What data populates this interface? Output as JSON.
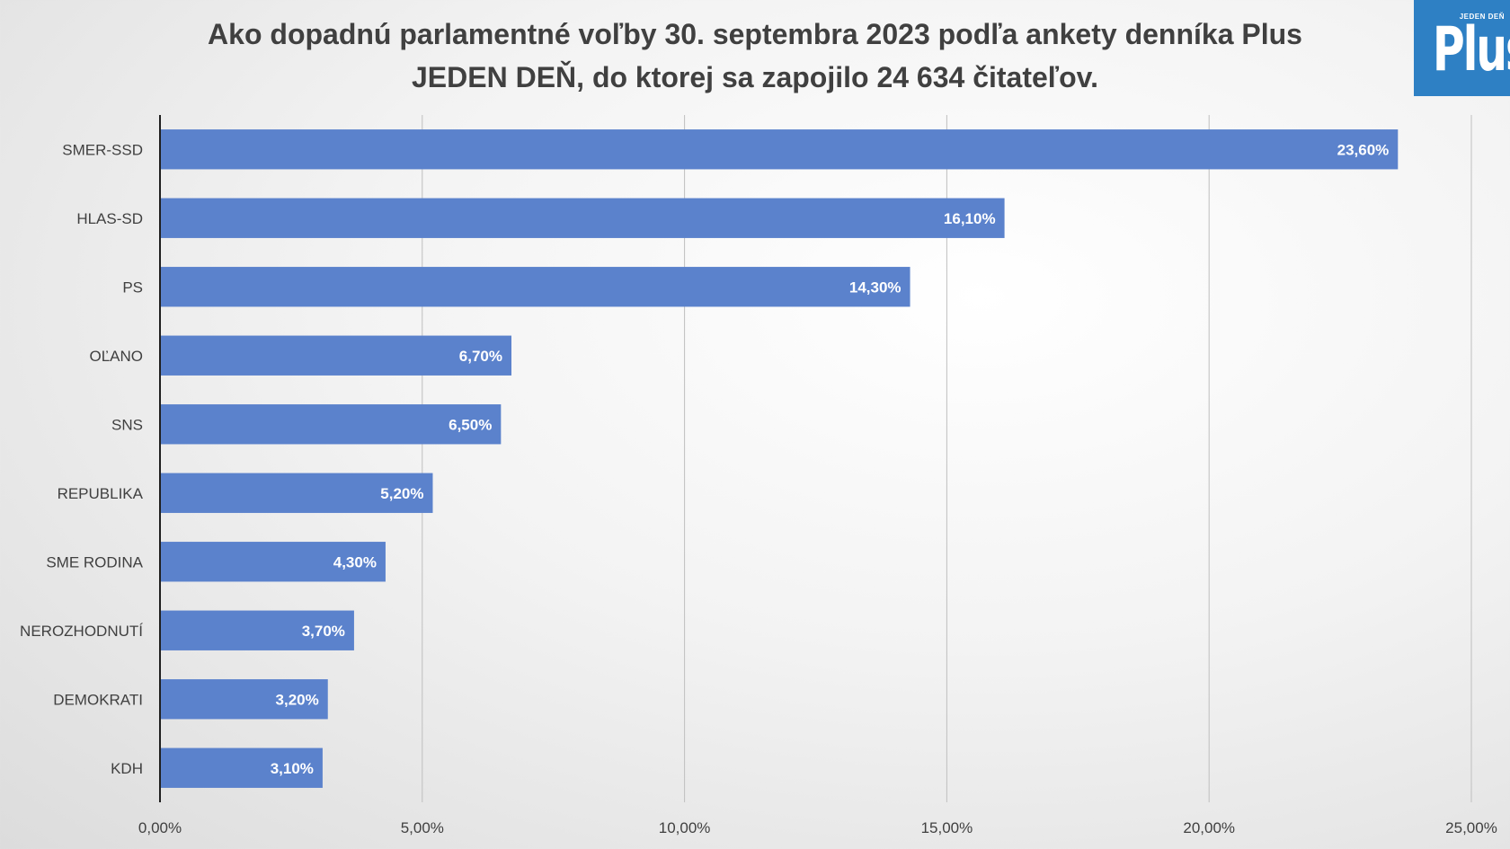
{
  "header": {
    "title_line1": "Ako dopadnú parlamentné voľby 30. septembra 2023 podľa ankety denníka Plus",
    "title_line2": "JEDEN DEŇ, do ktorej sa zapojilo 24 634 čitateľov."
  },
  "logo": {
    "word": "Plus",
    "tag": "JEDEN DEŇ",
    "color": "#2e80c4"
  },
  "colors": {
    "bar": "#5b82cc",
    "grid": "#bfbfbf",
    "axis": "#1f1f1f",
    "label_text": "#404040"
  },
  "chart_data": {
    "type": "bar",
    "orientation": "horizontal",
    "categories": [
      "SMER-SSD",
      "HLAS-SD",
      "PS",
      "OĽANO",
      "SNS",
      "REPUBLIKA",
      "SME RODINA",
      "NEROZHODNUTÍ",
      "DEMOKRATI",
      "KDH"
    ],
    "values": [
      23.6,
      16.1,
      14.3,
      6.7,
      6.5,
      5.2,
      4.3,
      3.7,
      3.2,
      3.1
    ],
    "value_labels": [
      "23,60%",
      "16,10%",
      "14,30%",
      "6,70%",
      "6,50%",
      "5,20%",
      "4,30%",
      "3,70%",
      "3,20%",
      "3,10%"
    ],
    "xlim": [
      0,
      25
    ],
    "xticks": [
      0,
      5,
      10,
      15,
      20,
      25
    ],
    "xtick_labels": [
      "0,00%",
      "5,00%",
      "10,00%",
      "15,00%",
      "20,00%",
      "25,00%"
    ],
    "grid": true,
    "legend": false
  }
}
